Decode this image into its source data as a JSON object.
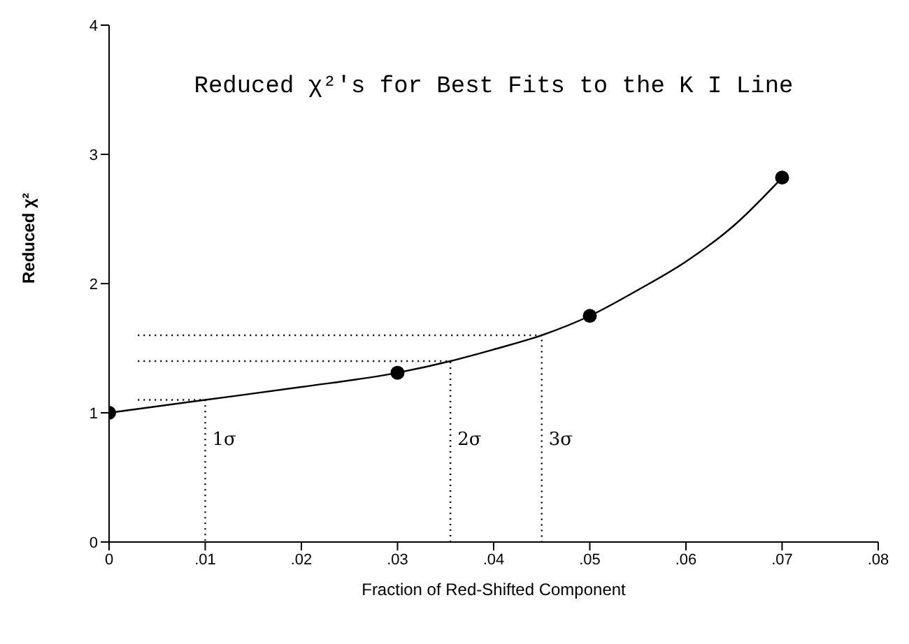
{
  "chart_data": {
    "type": "line",
    "title": "Reduced χ²'s for Best Fits to the K I Line",
    "xlabel": "Fraction of Red-Shifted Component",
    "ylabel": "Reduced χ²",
    "xlim": [
      0,
      0.08
    ],
    "xticks": [
      {
        "value": 0,
        "label": "0"
      },
      {
        "value": 0.01,
        "label": ".01"
      },
      {
        "value": 0.02,
        "label": ".02"
      },
      {
        "value": 0.03,
        "label": ".03"
      },
      {
        "value": 0.04,
        "label": ".04"
      },
      {
        "value": 0.05,
        "label": ".05"
      },
      {
        "value": 0.06,
        "label": ".06"
      },
      {
        "value": 0.07,
        "label": ".07"
      },
      {
        "value": 0.08,
        "label": ".08"
      }
    ],
    "ylim": [
      0,
      4
    ],
    "yticks": [
      0,
      1,
      2,
      3,
      4
    ],
    "grid": false,
    "series": [
      {
        "color": "#000000",
        "line_style": "solid",
        "x": [
          0,
          0.01,
          0.02,
          0.03,
          0.0355,
          0.04,
          0.045,
          0.05,
          0.055,
          0.06,
          0.065,
          0.07
        ],
        "values": [
          1,
          1.1,
          1.2,
          1.31,
          1.4,
          1.49,
          1.6,
          1.75,
          1.95,
          2.17,
          2.45,
          2.82
        ]
      },
      {
        "type": "scatter",
        "color": "#000000",
        "marker": "circle",
        "x": [
          0,
          0.03,
          0.05,
          0.07
        ],
        "values": [
          1,
          1.31,
          1.75,
          2.82
        ]
      },
      {
        "color": "#000000",
        "line_style": "dotted",
        "x": [
          0.003,
          0.01,
          0.01
        ],
        "values": [
          1.1,
          1.1,
          0
        ]
      },
      {
        "color": "#000000",
        "line_style": "dotted",
        "x": [
          0.003,
          0.0355,
          0.0355
        ],
        "values": [
          1.4,
          1.4,
          0
        ]
      },
      {
        "color": "#000000",
        "line_style": "dotted",
        "x": [
          0.003,
          0.045,
          0.045
        ],
        "values": [
          1.6,
          1.6,
          0
        ]
      }
    ],
    "annotations": [
      {
        "text": "1σ",
        "x": 0.01,
        "y": 0.8
      },
      {
        "text": "2σ",
        "x": 0.0355,
        "y": 0.8
      },
      {
        "text": "3σ",
        "x": 0.045,
        "y": 0.8
      }
    ]
  }
}
